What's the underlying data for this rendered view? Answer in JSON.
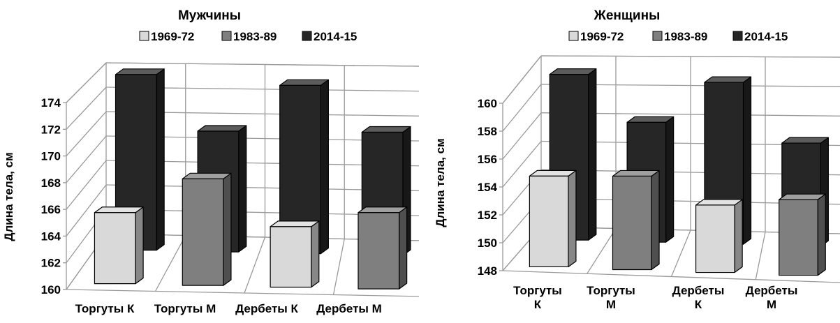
{
  "chart_data": [
    {
      "type": "bar",
      "title": "Мужчины",
      "ylabel": "Длина тела, см",
      "xlabel": "",
      "ylim": [
        160,
        174
      ],
      "yticks": [
        160,
        162,
        164,
        166,
        168,
        170,
        172,
        174
      ],
      "legend_position": "top",
      "categories": [
        "Торгуты К",
        "Торгуты М",
        "Дербеты К",
        "Дербеты М"
      ],
      "category_lines": [
        [
          "Торгуты К"
        ],
        [
          "Торгуты М"
        ],
        [
          "Дербеты К"
        ],
        [
          "Дербеты М"
        ]
      ],
      "series": [
        {
          "name": "1969-72",
          "color": "#d9d9d9",
          "values": [
            165.4,
            null,
            164.6,
            null
          ]
        },
        {
          "name": "1983-89",
          "color": "#7f7f7f",
          "values": [
            null,
            168.1,
            null,
            165.8
          ]
        },
        {
          "name": "2014-15",
          "color": "#262626",
          "values": [
            174.4,
            169.9,
            173.8,
            170.1
          ]
        }
      ]
    },
    {
      "type": "bar",
      "title": "Женщины",
      "ylabel": "Длина тела, см",
      "xlabel": "",
      "ylim": [
        148,
        160
      ],
      "yticks": [
        148,
        150,
        152,
        154,
        156,
        158,
        160
      ],
      "legend_position": "top",
      "categories": [
        "Торгуты К",
        "Торгуты М",
        "Дербеты К",
        "Дербеты М"
      ],
      "category_lines": [
        [
          "Торгуты",
          "К"
        ],
        [
          "Торгуты",
          "М"
        ],
        [
          "Дербеты",
          "К"
        ],
        [
          "Дербеты",
          "М"
        ]
      ],
      "series": [
        {
          "name": "1969-72",
          "color": "#d9d9d9",
          "values": [
            154.6,
            null,
            152.9,
            null
          ]
        },
        {
          "name": "1983-89",
          "color": "#7f7f7f",
          "values": [
            null,
            154.8,
            null,
            153.5
          ]
        },
        {
          "name": "2014-15",
          "color": "#262626",
          "values": [
            161.0,
            157.4,
            160.7,
            156.1
          ]
        }
      ]
    }
  ]
}
